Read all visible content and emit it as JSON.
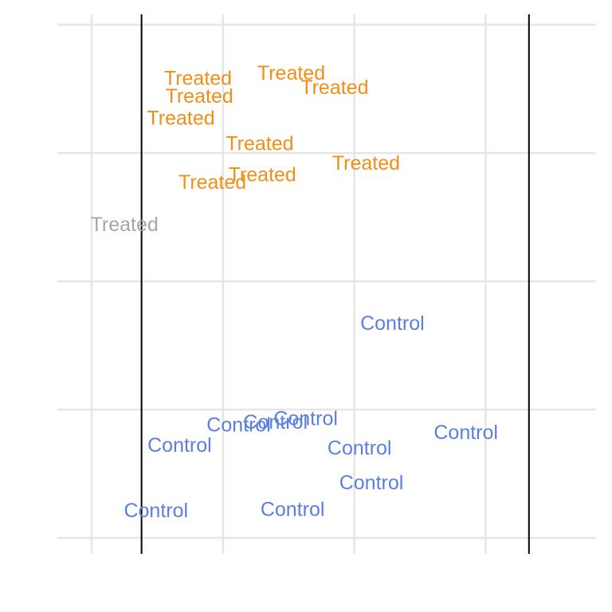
{
  "chart_data": {
    "type": "scatter",
    "title": "",
    "xlabel": "",
    "ylabel": "",
    "grid": true,
    "xlim": [
      0,
      4
    ],
    "ylim": [
      0,
      4
    ],
    "x_gridlines": [
      0,
      1,
      2,
      3
    ],
    "y_gridlines": [
      0,
      1,
      2,
      3,
      4
    ],
    "vlines": [
      0.38,
      3.33
    ],
    "colors": {
      "Treated": "#F28E17",
      "Control": "#5B7FE0",
      "highlight": "#A6A6A6",
      "grid": "#E6E6E6",
      "vline": "#000000"
    },
    "points": [
      {
        "label": "Treated",
        "group": "Treated",
        "x": 0.81,
        "y": 3.58
      },
      {
        "label": "Treated",
        "group": "Treated",
        "x": 1.52,
        "y": 3.62
      },
      {
        "label": "Treated",
        "group": "Treated",
        "x": 1.85,
        "y": 3.51
      },
      {
        "label": "Treated",
        "group": "Treated",
        "x": 0.82,
        "y": 3.44
      },
      {
        "label": "Treated",
        "group": "Treated",
        "x": 0.68,
        "y": 3.27
      },
      {
        "label": "Treated",
        "group": "Treated",
        "x": 1.28,
        "y": 3.07
      },
      {
        "label": "Treated",
        "group": "Treated",
        "x": 2.09,
        "y": 2.92
      },
      {
        "label": "Treated",
        "group": "Treated",
        "x": 1.3,
        "y": 2.83
      },
      {
        "label": "Treated",
        "group": "Treated",
        "x": 0.92,
        "y": 2.77
      },
      {
        "label": "Treated",
        "group": "highlight",
        "x": 0.25,
        "y": 2.44
      },
      {
        "label": "Control",
        "group": "Control",
        "x": 2.29,
        "y": 1.67
      },
      {
        "label": "Control",
        "group": "Control",
        "x": 1.63,
        "y": 0.93
      },
      {
        "label": "Control",
        "group": "Control",
        "x": 1.4,
        "y": 0.9
      },
      {
        "label": "Control",
        "group": "Control",
        "x": 1.12,
        "y": 0.88
      },
      {
        "label": "Control",
        "group": "Control",
        "x": 0.67,
        "y": 0.72
      },
      {
        "label": "Control",
        "group": "Control",
        "x": 2.04,
        "y": 0.7
      },
      {
        "label": "Control",
        "group": "Control",
        "x": 2.85,
        "y": 0.82
      },
      {
        "label": "Control",
        "group": "Control",
        "x": 2.13,
        "y": 0.43
      },
      {
        "label": "Control",
        "group": "Control",
        "x": 0.49,
        "y": 0.21
      },
      {
        "label": "Control",
        "group": "Control",
        "x": 1.53,
        "y": 0.22
      }
    ]
  }
}
